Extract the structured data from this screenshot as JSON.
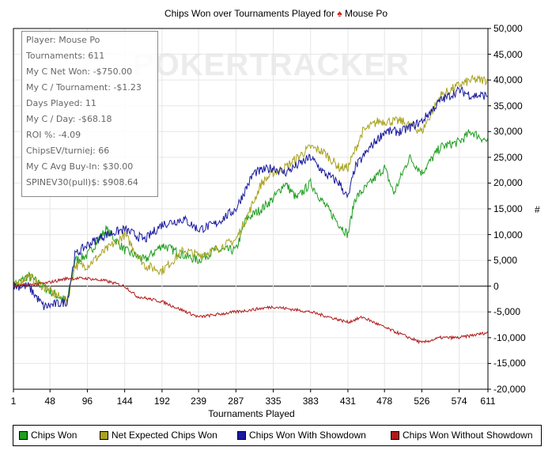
{
  "title_prefix": "Chips Won over Tournaments Played for",
  "title_suit": "♠",
  "title_player": "Mouse Po",
  "watermark": "POKERTRACKER",
  "stats": [
    "Player: Mouse Po",
    "Tournaments: 611",
    "My C Net Won: -$750.00",
    "My C / Tournament: -$1.23",
    "Days Played: 11",
    "My C / Day: -$68.18",
    "ROI %: -4.09",
    "ChipsEV/turniej: 66",
    "My C Avg Buy-In: $30.00",
    "SPINEV30(pull)$: $908.64"
  ],
  "chart_data": {
    "type": "line",
    "title": "Chips Won over Tournaments Played for Mouse Po",
    "xlabel": "Tournaments Played",
    "ylabel": "#",
    "xlim": [
      1,
      611
    ],
    "ylim": [
      -20000,
      50000
    ],
    "x_ticks": [
      "1",
      "48",
      "96",
      "144",
      "192",
      "239",
      "287",
      "335",
      "383",
      "431",
      "478",
      "526",
      "574",
      "611"
    ],
    "y_ticks": [
      "50,000",
      "45,000",
      "40,000",
      "35,000",
      "30,000",
      "25,000",
      "20,000",
      "15,000",
      "10,000",
      "5,000",
      "0",
      "-5,000",
      "-10,000",
      "-15,000",
      "-20,000"
    ],
    "grid": true,
    "legend_position": "bottom",
    "series": [
      {
        "name": "Chips Won",
        "color": "#1f9e1f",
        "x": [
          1,
          20,
          48,
          70,
          80,
          96,
          120,
          144,
          170,
          192,
          220,
          239,
          260,
          287,
          300,
          320,
          335,
          350,
          365,
          383,
          400,
          420,
          431,
          440,
          460,
          478,
          490,
          510,
          526,
          550,
          574,
          590,
          611
        ],
        "y": [
          0,
          2000,
          -1000,
          -3000,
          5000,
          6000,
          11000,
          7000,
          5000,
          8000,
          6000,
          5000,
          7000,
          7000,
          13000,
          15000,
          17000,
          20000,
          17000,
          20000,
          16000,
          12000,
          10000,
          17000,
          20000,
          23000,
          18000,
          25000,
          22000,
          27000,
          28000,
          30000,
          28000
        ]
      },
      {
        "name": "Net Expected Chips Won",
        "color": "#a8a21e",
        "x": [
          1,
          20,
          48,
          70,
          80,
          96,
          120,
          144,
          170,
          192,
          220,
          239,
          260,
          287,
          300,
          320,
          335,
          350,
          383,
          400,
          420,
          431,
          450,
          470,
          478,
          500,
          526,
          550,
          574,
          590,
          611
        ],
        "y": [
          0,
          2000,
          -1000,
          -3000,
          4000,
          4000,
          7000,
          10000,
          4000,
          3000,
          7000,
          6000,
          7000,
          9000,
          13000,
          20000,
          22000,
          23000,
          27000,
          26000,
          23000,
          23000,
          30000,
          32000,
          32000,
          32000,
          30000,
          37000,
          39000,
          40000,
          40000
        ]
      },
      {
        "name": "Chips Won With Showdown",
        "color": "#1a1aa0",
        "x": [
          1,
          20,
          40,
          70,
          80,
          96,
          120,
          144,
          170,
          192,
          220,
          239,
          260,
          287,
          310,
          335,
          350,
          383,
          400,
          420,
          431,
          440,
          460,
          478,
          500,
          526,
          550,
          574,
          590,
          611
        ],
        "y": [
          0,
          0,
          -4000,
          -3000,
          6000,
          8000,
          10000,
          11000,
          9000,
          12000,
          13000,
          11000,
          12000,
          15000,
          22000,
          23000,
          22000,
          25000,
          22000,
          20000,
          17000,
          23000,
          27000,
          30000,
          30000,
          32000,
          36000,
          38000,
          37000,
          37000
        ]
      },
      {
        "name": "Chips Won Without Showdown",
        "color": "#b01a1a",
        "x": [
          1,
          40,
          70,
          96,
          120,
          144,
          160,
          192,
          239,
          287,
          335,
          383,
          431,
          450,
          478,
          510,
          526,
          550,
          574,
          611
        ],
        "y": [
          0,
          500,
          1500,
          1500,
          1000,
          0,
          -2000,
          -3000,
          -6000,
          -5000,
          -4000,
          -5000,
          -7000,
          -6000,
          -8000,
          -10000,
          -11000,
          -10000,
          -10000,
          -9000
        ]
      }
    ]
  }
}
